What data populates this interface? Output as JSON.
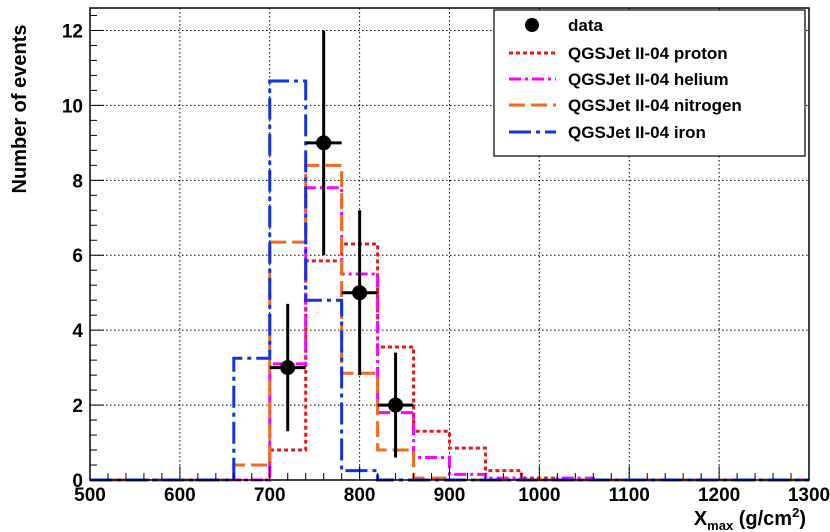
{
  "chart_data": {
    "type": "histogram",
    "xlabel": {
      "main": "X",
      "sub": "max",
      "unit_open": " (g/cm",
      "sup": "2",
      "unit_close": ")"
    },
    "ylabel": "Number of events",
    "xlim": [
      500,
      1300
    ],
    "ylim": [
      0,
      12.6
    ],
    "x_ticks": [
      500,
      600,
      700,
      800,
      900,
      1000,
      1100,
      1200,
      1300
    ],
    "y_ticks": [
      0,
      2,
      4,
      6,
      8,
      10,
      12
    ],
    "grid": true,
    "legend_position": "top-right",
    "bin_edges": [
      500,
      540,
      580,
      620,
      660,
      700,
      740,
      780,
      820,
      860,
      900,
      940,
      980,
      1020,
      1060,
      1100,
      1140,
      1180,
      1220,
      1260,
      1300
    ],
    "series": [
      {
        "name": "QGSJet II-04 proton",
        "color": "#e8191c",
        "dash": "4,3",
        "values": [
          0,
          0,
          0,
          0,
          0,
          0.8,
          5.85,
          6.3,
          3.55,
          1.3,
          0.85,
          0.25,
          0.05,
          0,
          0,
          0,
          0,
          0,
          0,
          0
        ]
      },
      {
        "name": "QGSJet II-04 helium",
        "color": "#ff00ff",
        "dash": "12,4,3,4",
        "values": [
          0,
          0,
          0,
          0,
          0,
          3.1,
          7.8,
          5.5,
          1.8,
          0.6,
          0.15,
          0.05,
          0,
          0.05,
          0,
          0,
          0,
          0,
          0,
          0
        ]
      },
      {
        "name": "QGSJet II-04 nitrogen",
        "color": "#f26b1d",
        "dash": "16,6",
        "values": [
          0,
          0,
          0,
          0,
          0.4,
          6.35,
          8.4,
          2.85,
          0.8,
          0.05,
          0,
          0,
          0,
          0,
          0,
          0,
          0,
          0,
          0,
          0
        ]
      },
      {
        "name": "QGSJet II-04 iron",
        "color": "#1230e6",
        "dash": "22,5,4,5",
        "values": [
          0,
          0,
          0,
          0,
          3.25,
          10.65,
          4.8,
          0.25,
          0,
          0,
          0,
          0,
          0,
          0,
          0,
          0,
          0,
          0,
          0,
          0
        ]
      }
    ],
    "data_series": {
      "name": "data",
      "color": "#000000",
      "points": [
        {
          "x": 720,
          "y": 3,
          "xerr": 20,
          "ylo": 1.3,
          "yhi": 4.7
        },
        {
          "x": 760,
          "y": 9,
          "xerr": 20,
          "ylo": 6.0,
          "yhi": 12.0
        },
        {
          "x": 800,
          "y": 5,
          "xerr": 20,
          "ylo": 2.8,
          "yhi": 7.2
        },
        {
          "x": 840,
          "y": 2,
          "xerr": 20,
          "ylo": 0.6,
          "yhi": 3.4
        }
      ]
    }
  }
}
